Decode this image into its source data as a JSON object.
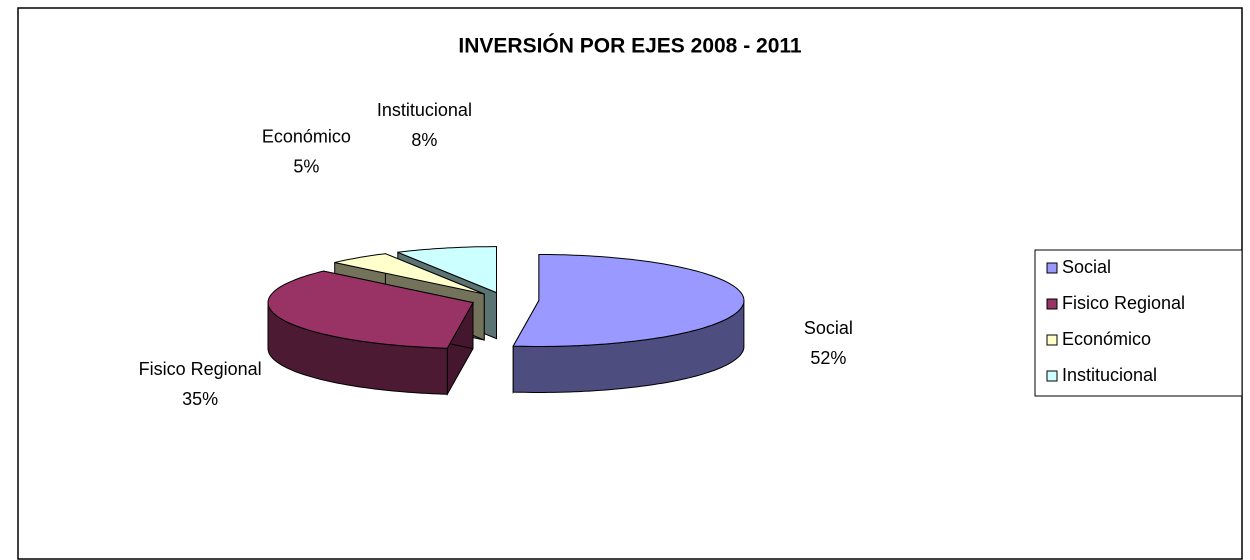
{
  "chart_data": {
    "type": "pie3d",
    "title": "INVERSIÓN POR EJES 2008 - 2011",
    "categories": [
      "Social",
      "Fisico Regional",
      "Económico",
      "Institucional"
    ],
    "values": [
      52,
      35,
      5,
      8
    ],
    "value_labels": [
      "52%",
      "35%",
      "5%",
      "8%"
    ],
    "colors": [
      "#9999ff",
      "#993366",
      "#ffffcc",
      "#ccffff"
    ],
    "legend": "right"
  }
}
